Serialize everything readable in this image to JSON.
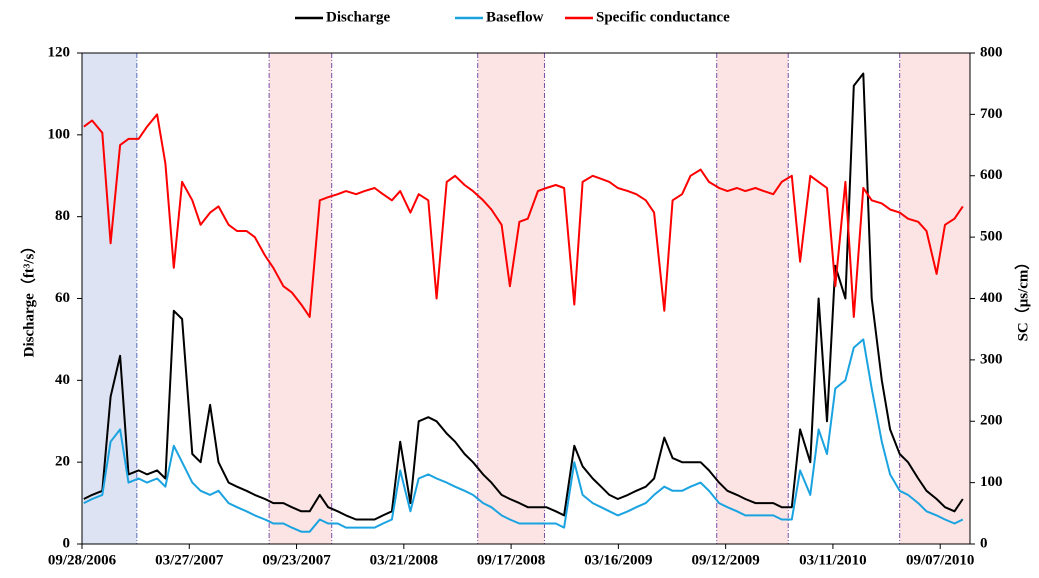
{
  "chart_data": {
    "type": "line",
    "x": [
      "10/01/2006",
      "10/15/2006",
      "11/01/2006",
      "11/15/2006",
      "12/01/2006",
      "12/15/2006",
      "01/01/2007",
      "01/15/2007",
      "02/01/2007",
      "02/15/2007",
      "03/01/2007",
      "03/15/2007",
      "04/01/2007",
      "04/15/2007",
      "05/01/2007",
      "05/15/2007",
      "06/01/2007",
      "06/15/2007",
      "07/01/2007",
      "07/15/2007",
      "08/01/2007",
      "08/15/2007",
      "09/01/2007",
      "09/15/2007",
      "10/01/2007",
      "10/15/2007",
      "11/01/2007",
      "11/15/2007",
      "12/01/2007",
      "12/15/2007",
      "01/01/2008",
      "01/15/2008",
      "02/01/2008",
      "02/15/2008",
      "03/01/2008",
      "03/15/2008",
      "04/01/2008",
      "04/15/2008",
      "05/01/2008",
      "05/15/2008",
      "06/01/2008",
      "06/15/2008",
      "07/01/2008",
      "07/15/2008",
      "08/01/2008",
      "08/15/2008",
      "09/01/2008",
      "09/15/2008",
      "10/01/2008",
      "10/15/2008",
      "11/01/2008",
      "11/15/2008",
      "12/01/2008",
      "12/15/2008",
      "01/01/2009",
      "01/15/2009",
      "02/01/2009",
      "02/15/2009",
      "03/01/2009",
      "03/15/2009",
      "04/01/2009",
      "04/15/2009",
      "05/01/2009",
      "05/15/2009",
      "06/01/2009",
      "06/15/2009",
      "07/01/2009",
      "07/15/2009",
      "08/01/2009",
      "08/15/2009",
      "09/01/2009",
      "09/15/2009",
      "10/01/2009",
      "10/15/2009",
      "11/01/2009",
      "11/15/2009",
      "12/01/2009",
      "12/15/2009",
      "01/01/2010",
      "01/15/2010",
      "02/01/2010",
      "02/15/2010",
      "03/01/2010",
      "03/15/2010",
      "04/01/2010",
      "04/15/2010",
      "05/01/2010",
      "05/15/2010",
      "06/01/2010",
      "06/15/2010",
      "07/01/2010",
      "07/15/2010",
      "08/01/2010",
      "08/15/2010",
      "09/01/2010",
      "09/15/2010",
      "10/01/2010",
      "10/15/2010"
    ],
    "series": [
      {
        "name": "Discharge",
        "color": "#000000",
        "values": [
          11,
          12,
          13,
          36,
          46,
          17,
          18,
          17,
          18,
          16,
          57,
          55,
          22,
          20,
          34,
          20,
          15,
          14,
          13,
          12,
          11,
          10,
          10,
          9,
          8,
          8,
          12,
          9,
          8,
          7,
          6,
          6,
          6,
          7,
          8,
          25,
          10,
          30,
          31,
          30,
          27,
          25,
          22,
          20,
          17,
          15,
          12,
          11,
          10,
          9,
          9,
          9,
          8,
          7,
          24,
          19,
          16,
          14,
          12,
          11,
          12,
          13,
          14,
          16,
          26,
          21,
          20,
          20,
          20,
          18,
          15,
          13,
          12,
          11,
          10,
          10,
          10,
          9,
          9,
          28,
          20,
          60,
          30,
          68,
          60,
          112,
          115,
          60,
          40,
          28,
          22,
          20,
          16,
          13,
          11,
          9,
          8,
          11
        ]
      },
      {
        "name": "Baseflow",
        "color": "#1aa3e0",
        "values": [
          10,
          11,
          12,
          25,
          28,
          15,
          16,
          15,
          16,
          14,
          24,
          20,
          15,
          13,
          12,
          13,
          10,
          9,
          8,
          7,
          6,
          5,
          5,
          4,
          3,
          3,
          6,
          5,
          5,
          4,
          4,
          4,
          4,
          5,
          6,
          18,
          8,
          16,
          17,
          16,
          15,
          14,
          13,
          12,
          10,
          9,
          7,
          6,
          5,
          5,
          5,
          5,
          5,
          4,
          20,
          12,
          10,
          9,
          8,
          7,
          8,
          9,
          10,
          12,
          14,
          13,
          13,
          14,
          15,
          13,
          10,
          9,
          8,
          7,
          7,
          7,
          7,
          6,
          6,
          18,
          12,
          28,
          22,
          38,
          40,
          48,
          50,
          38,
          25,
          17,
          13,
          12,
          10,
          8,
          7,
          6,
          5,
          6
        ]
      },
      {
        "name": "Specific conductance",
        "color": "#ff0000",
        "axis": "y2",
        "values": [
          680,
          690,
          670,
          490,
          650,
          660,
          660,
          680,
          700,
          620,
          450,
          590,
          560,
          520,
          540,
          550,
          520,
          510,
          510,
          500,
          470,
          450,
          420,
          410,
          390,
          370,
          560,
          565,
          570,
          575,
          570,
          575,
          580,
          570,
          560,
          575,
          540,
          570,
          560,
          400,
          590,
          600,
          585,
          575,
          560,
          545,
          520,
          420,
          525,
          530,
          575,
          580,
          585,
          580,
          390,
          590,
          600,
          595,
          590,
          580,
          575,
          570,
          560,
          540,
          380,
          560,
          570,
          600,
          610,
          590,
          580,
          575,
          580,
          575,
          580,
          575,
          570,
          590,
          600,
          460,
          600,
          590,
          580,
          420,
          590,
          370,
          580,
          560,
          555,
          545,
          540,
          530,
          525,
          510,
          440,
          520,
          530,
          550
        ]
      }
    ],
    "xlim": [
      "09/28/2006",
      "10/27/2010"
    ],
    "xticks": [
      "09/28/2006",
      "03/27/2007",
      "09/23/2007",
      "03/21/2008",
      "09/17/2008",
      "03/16/2009",
      "09/12/2009",
      "03/11/2010",
      "09/07/2010"
    ],
    "ylim": [
      0,
      120
    ],
    "yticks": [
      0,
      20,
      40,
      60,
      80,
      100,
      120
    ],
    "y2lim": [
      0,
      800
    ],
    "y2ticks": [
      0,
      100,
      200,
      300,
      400,
      500,
      600,
      700,
      800
    ],
    "ylabel": "Discharge（ft³/s）",
    "y2label": "SC（μs/cm）",
    "shaded_periods": [
      {
        "start": "09/28/2006",
        "end": "12/29/2006",
        "color": "#dde3f2",
        "edge": "#5b6fc0"
      },
      {
        "start": "08/08/2007",
        "end": "11/21/2007",
        "color": "#fce4e4",
        "edge": "#7a4fa8"
      },
      {
        "start": "07/23/2008",
        "end": "11/12/2008",
        "color": "#fce4e4",
        "edge": "#7a4fa8"
      },
      {
        "start": "08/28/2009",
        "end": "12/26/2009",
        "color": "#fce4e4",
        "edge": "#7a4fa8"
      },
      {
        "start": "07/01/2010",
        "end": "10/27/2010",
        "color": "#fce4e4",
        "edge": "#7a4fa8"
      }
    ],
    "legend": "top"
  }
}
